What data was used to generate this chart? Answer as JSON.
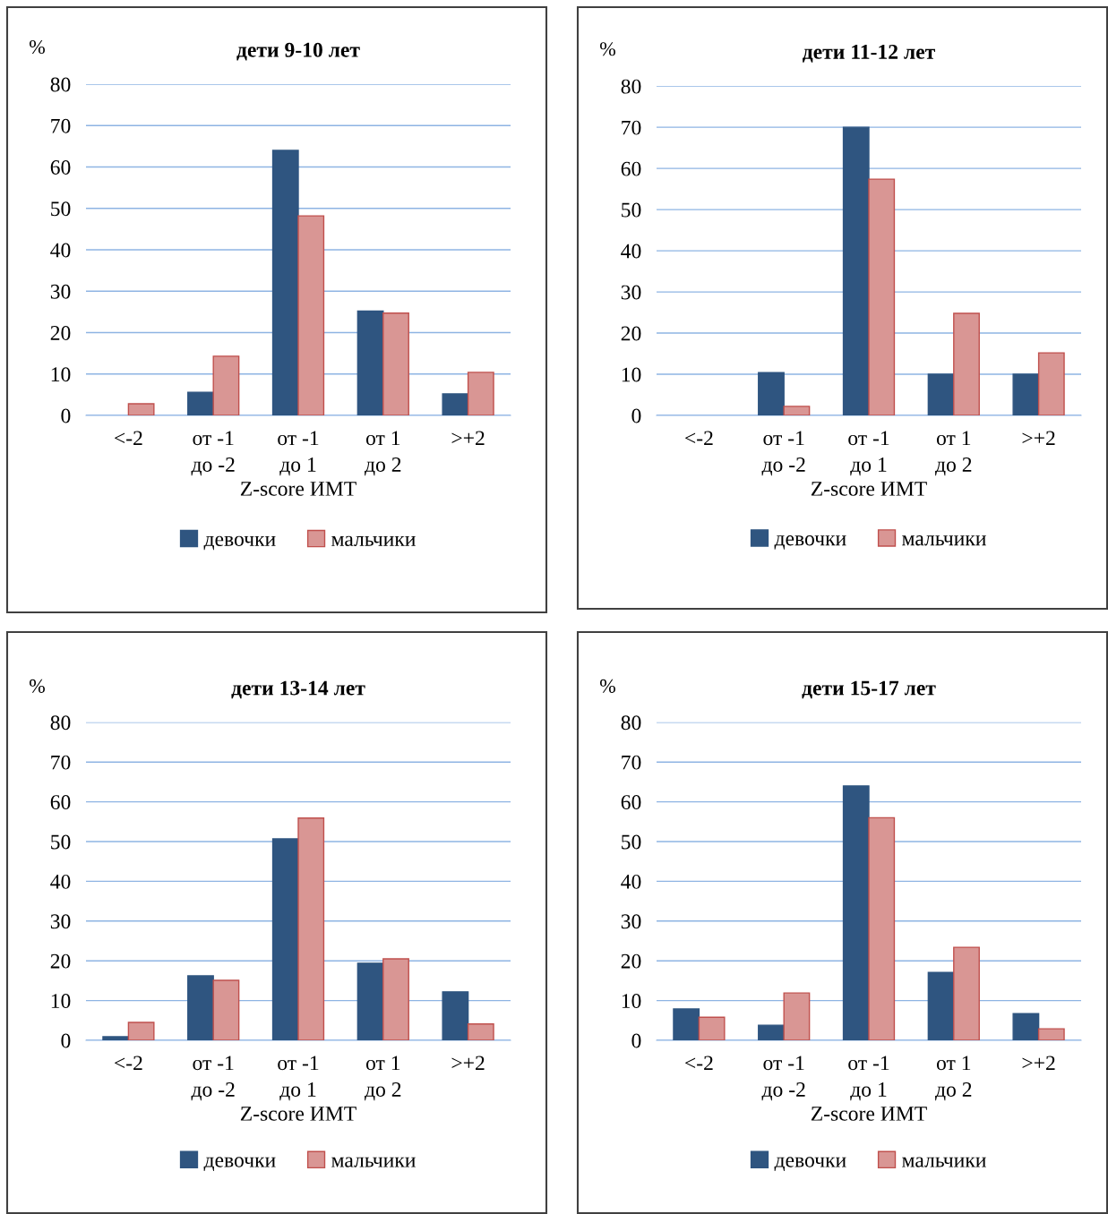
{
  "chart_data": [
    {
      "type": "bar",
      "title": "дети 9-10 лет",
      "ylabel": "%",
      "xlabel": "Z-score ИМТ",
      "categories": [
        "<-2",
        "от -1\nдо -2",
        "от -1\nдо 1",
        "от 1\nдо 2",
        ">+2"
      ],
      "ylim": [
        0,
        80
      ],
      "yticks": [
        0,
        10,
        20,
        30,
        40,
        50,
        60,
        70,
        80
      ],
      "grid": "y",
      "legend": "bottom",
      "series": [
        {
          "name": "девочки",
          "color": "#2f5580",
          "values": [
            null,
            5.6,
            64,
            25.2,
            5.2
          ]
        },
        {
          "name": "мальчики",
          "color": "#d99694",
          "values": [
            2.8,
            14.3,
            48.2,
            24.7,
            10.4
          ]
        }
      ]
    },
    {
      "type": "bar",
      "title": "дети 11-12 лет",
      "ylabel": "%",
      "xlabel": "Z-score ИМТ",
      "categories": [
        "<-2",
        "от -1\nдо -2",
        "от -1\nдо 1",
        "от 1\nдо 2",
        ">+2"
      ],
      "ylim": [
        0,
        80
      ],
      "yticks": [
        0,
        10,
        20,
        30,
        40,
        50,
        60,
        70,
        80
      ],
      "grid": "y",
      "legend": "bottom",
      "series": [
        {
          "name": "девочки",
          "color": "#2f5580",
          "values": [
            null,
            10.4,
            70,
            10,
            10
          ]
        },
        {
          "name": "мальчики",
          "color": "#d99694",
          "values": [
            null,
            2.2,
            57.4,
            24.8,
            15.2
          ]
        }
      ]
    },
    {
      "type": "bar",
      "title": "дети 13-14 лет",
      "ylabel": "%",
      "xlabel": "Z-score ИМТ",
      "categories": [
        "<-2",
        "от -1\nдо -2",
        "от -1\nдо 1",
        "от 1\nдо 2",
        ">+2"
      ],
      "ylim": [
        0,
        80
      ],
      "yticks": [
        0,
        10,
        20,
        30,
        40,
        50,
        60,
        70,
        80
      ],
      "grid": "y",
      "legend": "bottom",
      "series": [
        {
          "name": "девочки",
          "color": "#2f5580",
          "values": [
            0.9,
            16.2,
            50.7,
            19.4,
            12.2
          ]
        },
        {
          "name": "мальчики",
          "color": "#d99694",
          "values": [
            4.5,
            15.1,
            55.9,
            20.5,
            4.1
          ]
        }
      ]
    },
    {
      "type": "bar",
      "title": "дети 15-17 лет",
      "ylabel": "%",
      "xlabel": "Z-score ИМТ",
      "categories": [
        "<-2",
        "от -1\nдо -2",
        "от -1\nдо 1",
        "от 1\nдо 2",
        ">+2"
      ],
      "ylim": [
        0,
        80
      ],
      "yticks": [
        0,
        10,
        20,
        30,
        40,
        50,
        60,
        70,
        80
      ],
      "grid": "y",
      "legend": "bottom",
      "series": [
        {
          "name": "девочки",
          "color": "#2f5580",
          "values": [
            7.9,
            3.8,
            64,
            17.1,
            6.7
          ]
        },
        {
          "name": "мальчики",
          "color": "#d99694",
          "values": [
            5.8,
            11.9,
            56,
            23.4,
            2.9
          ]
        }
      ]
    }
  ]
}
